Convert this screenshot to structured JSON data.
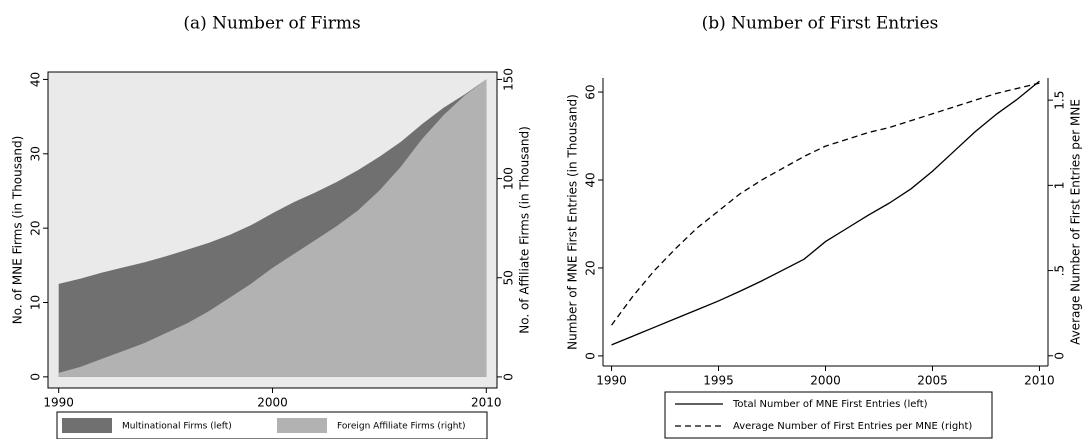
{
  "chart_data": [
    {
      "type": "area",
      "title": "(a) Number of Firms",
      "x": [
        1990,
        1991,
        1992,
        1993,
        1994,
        1995,
        1996,
        1997,
        1998,
        1999,
        2000,
        2001,
        2002,
        2003,
        2004,
        2005,
        2006,
        2007,
        2008,
        2009,
        2010
      ],
      "xlim": [
        1989.5,
        2010.5
      ],
      "xticks": [
        1990,
        2000,
        2010
      ],
      "ylim": [
        -1.5,
        41
      ],
      "yticks": [
        0,
        10,
        20,
        30,
        40
      ],
      "y2lim": [
        -5.6,
        153.75
      ],
      "y2ticks": [
        0,
        50,
        100,
        150
      ],
      "ylabel": "No. of MNE Firms (in Thousand)",
      "y2label": "No. of Affiliate Firms (in Thousand)",
      "series": [
        {
          "name": "Multinational Firms (left)",
          "color": "#707070",
          "values": [
            12.5,
            13.2,
            14,
            14.7,
            15.4,
            16.2,
            17.1,
            18,
            19.1,
            20.4,
            22,
            23.5,
            24.8,
            26.2,
            27.8,
            29.6,
            31.6,
            34,
            36.2,
            38,
            40
          ]
        },
        {
          "name": "Foreign Affiliate Firms (right)",
          "color": "#b2b2b2",
          "axis": "y2",
          "values": [
            2,
            5,
            9,
            13,
            17,
            22,
            27,
            33,
            40,
            47,
            55,
            62,
            69,
            76,
            84,
            94,
            106,
            120,
            132,
            142,
            150
          ]
        }
      ]
    },
    {
      "type": "line",
      "title": "(b) Number of First Entries",
      "x": [
        1990,
        1991,
        1992,
        1993,
        1994,
        1995,
        1996,
        1997,
        1998,
        1999,
        2000,
        2001,
        2002,
        2003,
        2004,
        2005,
        2006,
        2007,
        2008,
        2009,
        2010
      ],
      "xlim": [
        1989.6,
        2010.4
      ],
      "xticks": [
        1990,
        1995,
        2000,
        2005,
        2010
      ],
      "ylim": [
        -2.3,
        63.2
      ],
      "yticks": [
        0,
        20,
        40,
        60
      ],
      "y2lim": [
        -0.06,
        1.63
      ],
      "y2ticks": [
        0,
        {
          "value": 0.5,
          "label": ".5"
        },
        1,
        {
          "value": 1.5,
          "label": "1.5"
        }
      ],
      "ylabel": "Number of MNE First Entries (in Thousand)",
      "y2label": "Average Number of First Entries per MNE",
      "series": [
        {
          "name": "Total Number of MNE First Entries (left)",
          "color": "#000000",
          "dash": false,
          "values": [
            2.5,
            4.5,
            6.5,
            8.5,
            10.5,
            12.5,
            14.7,
            17,
            19.5,
            22,
            26,
            29,
            32,
            34.8,
            38,
            42,
            46.5,
            51,
            55,
            58.5,
            62.5
          ]
        },
        {
          "name": "Average Number of First Entries per MNE (right)",
          "color": "#000000",
          "dash": true,
          "axis": "y2",
          "values": [
            0.18,
            0.35,
            0.5,
            0.63,
            0.75,
            0.85,
            0.95,
            1.03,
            1.1,
            1.17,
            1.23,
            1.27,
            1.31,
            1.34,
            1.38,
            1.42,
            1.46,
            1.5,
            1.54,
            1.57,
            1.6
          ]
        }
      ]
    }
  ]
}
